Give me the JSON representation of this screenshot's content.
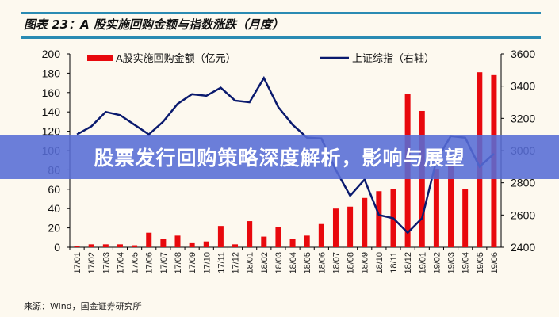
{
  "header": {
    "title": "图表 23：A 股实施回购金额与指数涨跌（月度）"
  },
  "banner": {
    "text": "股票发行回购策略深度解析，影响与展望"
  },
  "footer": {
    "source": "来源：Wind，国金证券研究所"
  },
  "chart_data": {
    "type": "bar+line",
    "title": "图表 23：A 股实施回购金额与指数涨跌（月度）",
    "categories": [
      "17/01",
      "17/02",
      "17/03",
      "17/04",
      "17/05",
      "17/06",
      "17/07",
      "17/08",
      "17/09",
      "17/10",
      "17/11",
      "17/12",
      "18/01",
      "18/02",
      "18/03",
      "18/04",
      "18/05",
      "18/06",
      "18/07",
      "18/08",
      "18/09",
      "18/10",
      "18/11",
      "18/12",
      "19/01",
      "19/02",
      "19/03",
      "19/04",
      "19/05",
      "19/06"
    ],
    "series": [
      {
        "name": "A股实施回购金额（亿元）",
        "type": "bar",
        "axis": "left",
        "color": "#e8090d",
        "values": [
          1,
          3,
          3,
          3,
          2,
          15,
          9,
          12,
          5,
          6,
          22,
          3,
          27,
          11,
          21,
          9,
          12,
          24,
          40,
          42,
          51,
          58,
          60,
          159,
          141,
          81,
          85,
          60,
          181,
          178
        ]
      },
      {
        "name": "上证综指（右轴）",
        "type": "line",
        "axis": "right",
        "color": "#0a1a6e",
        "values": [
          3100,
          3150,
          3240,
          3220,
          3160,
          3100,
          3180,
          3290,
          3350,
          3340,
          3390,
          3310,
          3300,
          3450,
          3270,
          3160,
          3080,
          3075,
          2880,
          2720,
          2820,
          2600,
          2580,
          2490,
          2580,
          2940,
          3090,
          3080,
          2900,
          2980
        ]
      }
    ],
    "left_axis": {
      "ylim": [
        0,
        200
      ],
      "ticks": [
        0,
        20,
        40,
        60,
        80,
        100,
        120,
        140,
        160,
        180,
        200
      ]
    },
    "right_axis": {
      "ylim": [
        2400,
        3600
      ],
      "ticks": [
        2400,
        2600,
        2800,
        3000,
        3200,
        3400,
        3600
      ]
    },
    "legend": "top",
    "grid": false
  }
}
